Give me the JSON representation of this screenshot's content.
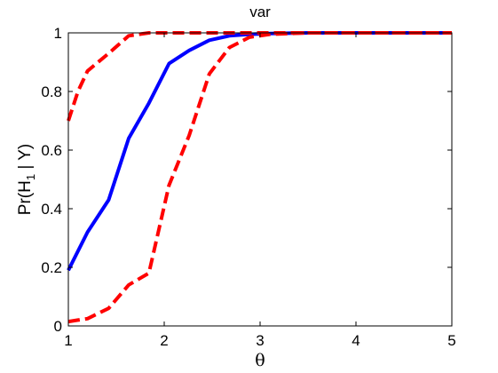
{
  "chart_data": {
    "type": "line",
    "title": "var",
    "xlabel": "θ",
    "ylabel": {
      "prefix": "Pr(H",
      "subscript": "1",
      "suffix": " | Y)"
    },
    "xlim": [
      1,
      5
    ],
    "ylim": [
      0,
      1
    ],
    "xticks": [
      1,
      2,
      3,
      4,
      5
    ],
    "xtick_labels": [
      "1",
      "2",
      "3",
      "4",
      "5"
    ],
    "yticks": [
      0,
      0.2,
      0.4,
      0.6,
      0.8,
      1
    ],
    "ytick_labels": [
      "0",
      "0.2",
      "0.4",
      "0.6",
      "0.8",
      "1"
    ],
    "grid": false,
    "legend": "none",
    "series": [
      {
        "id": "mean",
        "color": "#0000ff",
        "style": "solid",
        "x": [
          1.0,
          1.2,
          1.42,
          1.63,
          1.84,
          2.05,
          2.26,
          2.47,
          2.68,
          2.89,
          3.1,
          3.5,
          4.0,
          4.5,
          5.0
        ],
        "y": [
          0.19,
          0.32,
          0.43,
          0.64,
          0.76,
          0.895,
          0.94,
          0.975,
          0.99,
          0.995,
          0.998,
          1.0,
          1.0,
          1.0,
          1.0
        ]
      },
      {
        "id": "upper-bound",
        "color": "#ff0000",
        "style": "dashed",
        "x": [
          1.0,
          1.1,
          1.2,
          1.42,
          1.63,
          1.84,
          2.05,
          2.5,
          3.0,
          4.0,
          5.0
        ],
        "y": [
          0.7,
          0.8,
          0.87,
          0.93,
          0.99,
          1.0,
          1.0,
          1.0,
          1.0,
          1.0,
          1.0
        ]
      },
      {
        "id": "lower-bound",
        "color": "#ff0000",
        "style": "dashed",
        "x": [
          1.0,
          1.1,
          1.2,
          1.42,
          1.63,
          1.84,
          2.05,
          2.26,
          2.47,
          2.68,
          2.89,
          3.1,
          3.5,
          4.0,
          5.0
        ],
        "y": [
          0.015,
          0.02,
          0.025,
          0.06,
          0.14,
          0.18,
          0.48,
          0.65,
          0.86,
          0.95,
          0.985,
          0.995,
          1.0,
          1.0,
          1.0
        ]
      }
    ]
  }
}
